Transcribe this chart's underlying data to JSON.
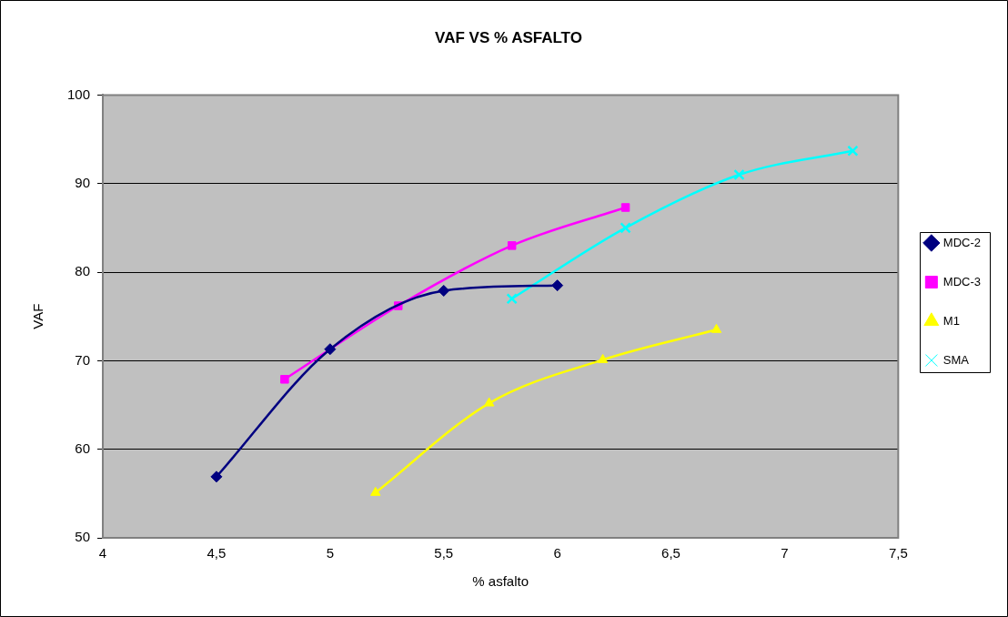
{
  "chart_data": {
    "type": "line",
    "title": "VAF VS % ASFALTO",
    "xlabel": "% asfalto",
    "ylabel": "VAF",
    "xlim": [
      4,
      7.5
    ],
    "xticks": [
      4,
      {
        "value": 4.5,
        "label": "4,5"
      },
      5,
      {
        "value": 5.5,
        "label": "5,5"
      },
      6,
      {
        "value": 6.5,
        "label": "6,5"
      },
      7,
      {
        "value": 7.5,
        "label": "7,5"
      }
    ],
    "ylim": [
      50,
      100
    ],
    "yticks": [
      50,
      60,
      70,
      80,
      90,
      100
    ],
    "grid": "y",
    "legend": "right",
    "series": [
      {
        "name": "MDC-2",
        "color": "#000080",
        "marker": "diamond",
        "x": [
          4.5,
          5,
          5.5,
          6
        ],
        "values": [
          56.9,
          71.3,
          77.9,
          78.5
        ]
      },
      {
        "name": "MDC-3",
        "color": "#ff00ff",
        "marker": "square",
        "x": [
          4.8,
          5.3,
          5.8,
          6.3
        ],
        "values": [
          67.9,
          76.2,
          83.0,
          87.3
        ]
      },
      {
        "name": "M1",
        "color": "#ffff00",
        "marker": "triangle",
        "x": [
          5.2,
          5.7,
          6.2,
          6.7
        ],
        "values": [
          55.1,
          65.2,
          70.1,
          73.5
        ]
      },
      {
        "name": "SMA",
        "color": "#00ffff",
        "marker": "cross",
        "x": [
          5.8,
          6.3,
          6.8,
          7.3
        ],
        "values": [
          77.0,
          85.0,
          91.0,
          93.7
        ]
      }
    ]
  }
}
